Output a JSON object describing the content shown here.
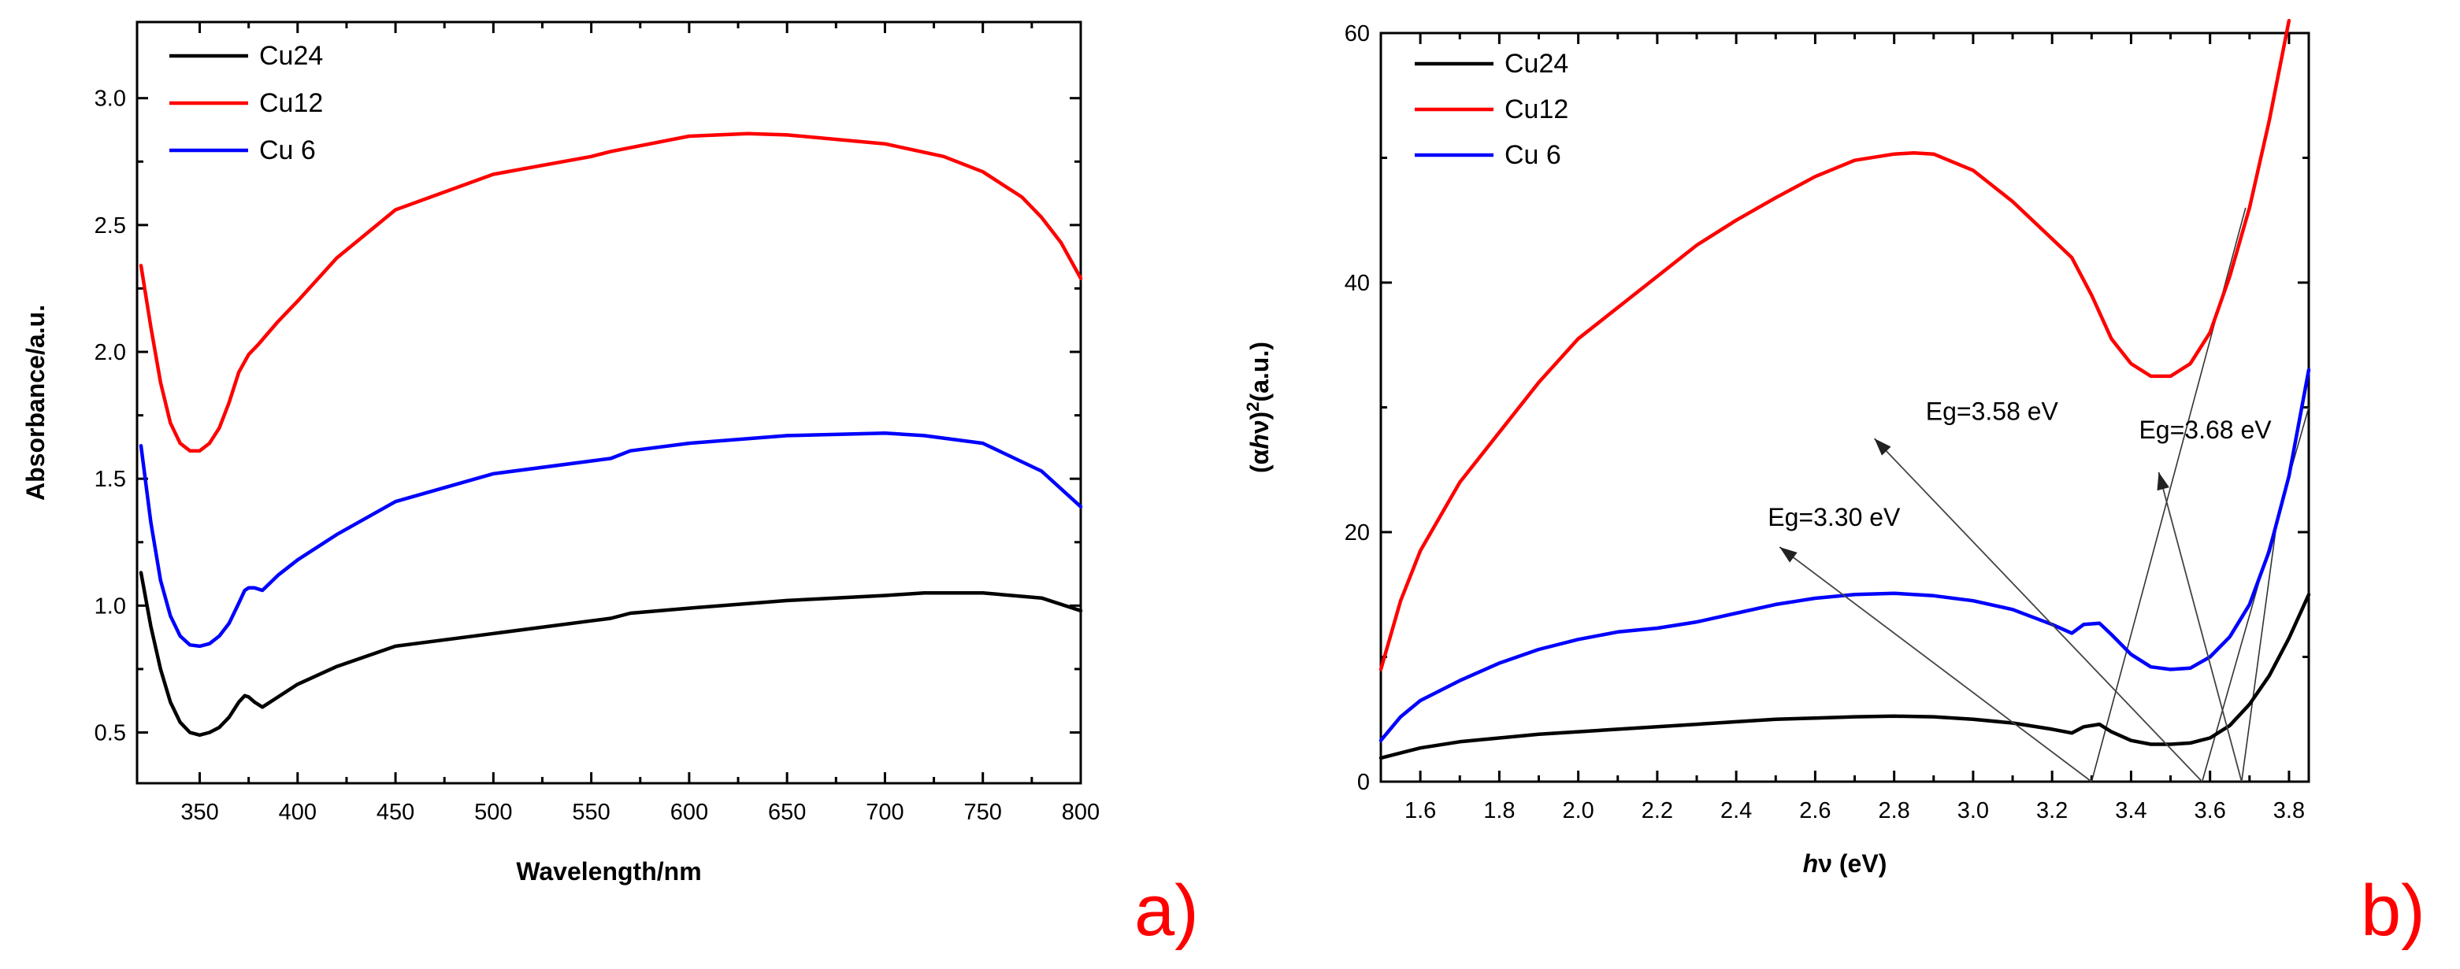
{
  "colors": {
    "Cu24": "#000000",
    "Cu12": "#ff0000",
    "Cu 6": "#0000ff"
  },
  "chart_data": [
    {
      "type": "line",
      "panel_label": "a)",
      "xlabel": "Wavelength/nm",
      "ylabel": "Absorbance/a.u.",
      "xlim": [
        318,
        800
      ],
      "ylim": [
        0.3,
        3.3
      ],
      "xticks": [
        350,
        400,
        450,
        500,
        550,
        600,
        650,
        700,
        750,
        800
      ],
      "yticks": [
        0.5,
        1.0,
        1.5,
        2.0,
        2.5,
        3.0
      ],
      "ytick_labels": [
        "0.5",
        "1.0",
        "1.5",
        "2.0",
        "2.5",
        "3.0"
      ],
      "legend": [
        "Cu24",
        "Cu12",
        "Cu 6"
      ],
      "legend_position": "top-left",
      "series": [
        {
          "name": "Cu24",
          "x": [
            320,
            325,
            330,
            335,
            340,
            345,
            350,
            355,
            360,
            365,
            370,
            373,
            375,
            378,
            382,
            390,
            400,
            420,
            450,
            500,
            550,
            560,
            570,
            600,
            650,
            700,
            720,
            750,
            780,
            800
          ],
          "values": [
            1.13,
            0.92,
            0.75,
            0.62,
            0.54,
            0.5,
            0.49,
            0.5,
            0.52,
            0.56,
            0.62,
            0.645,
            0.64,
            0.62,
            0.6,
            0.64,
            0.69,
            0.76,
            0.84,
            0.89,
            0.94,
            0.95,
            0.97,
            0.99,
            1.02,
            1.04,
            1.05,
            1.05,
            1.03,
            0.98
          ]
        },
        {
          "name": "Cu12",
          "x": [
            320,
            325,
            330,
            335,
            340,
            345,
            350,
            355,
            360,
            365,
            370,
            375,
            380,
            390,
            400,
            420,
            450,
            500,
            550,
            560,
            600,
            630,
            650,
            700,
            730,
            750,
            770,
            780,
            790,
            800
          ],
          "values": [
            2.34,
            2.1,
            1.88,
            1.72,
            1.64,
            1.61,
            1.61,
            1.64,
            1.7,
            1.8,
            1.92,
            1.99,
            2.03,
            2.12,
            2.2,
            2.37,
            2.56,
            2.7,
            2.77,
            2.79,
            2.85,
            2.86,
            2.855,
            2.82,
            2.77,
            2.71,
            2.61,
            2.53,
            2.43,
            2.29
          ]
        },
        {
          "name": "Cu 6",
          "x": [
            320,
            325,
            330,
            335,
            340,
            345,
            350,
            355,
            360,
            365,
            370,
            373,
            375,
            378,
            382,
            390,
            400,
            420,
            450,
            500,
            550,
            560,
            570,
            600,
            650,
            700,
            720,
            750,
            780,
            800
          ],
          "values": [
            1.63,
            1.33,
            1.1,
            0.96,
            0.88,
            0.845,
            0.84,
            0.85,
            0.88,
            0.93,
            1.01,
            1.06,
            1.07,
            1.07,
            1.06,
            1.12,
            1.18,
            1.28,
            1.41,
            1.52,
            1.57,
            1.58,
            1.61,
            1.64,
            1.67,
            1.68,
            1.67,
            1.64,
            1.53,
            1.39
          ]
        }
      ]
    },
    {
      "type": "line",
      "panel_label": "b)",
      "xlabel": "hν (eV)",
      "xlabel_parts": {
        "italic": "h",
        "rest": "ν (eV)"
      },
      "ylabel": "(αhν)²(a.u.)",
      "ylabel_parts": {
        "open": "(α",
        "italic": "h",
        "mid": "ν)",
        "sup": "2",
        "close": "(a.u.)"
      },
      "xlim": [
        1.5,
        3.85
      ],
      "ylim": [
        0,
        60
      ],
      "xticks": [
        1.6,
        1.8,
        2.0,
        2.2,
        2.4,
        2.6,
        2.8,
        3.0,
        3.2,
        3.4,
        3.6,
        3.8
      ],
      "xtick_labels": [
        "1.6",
        "1.8",
        "2.0",
        "2.2",
        "2.4",
        "2.6",
        "2.8",
        "3.0",
        "3.2",
        "3.4",
        "3.6",
        "3.8"
      ],
      "yticks": [
        0,
        20,
        40,
        60
      ],
      "ytick_labels": [
        "0",
        "20",
        "40",
        "60"
      ],
      "legend": [
        "Cu24",
        "Cu12",
        "Cu 6"
      ],
      "legend_position": "top-left",
      "series": [
        {
          "name": "Cu24",
          "x": [
            1.5,
            1.6,
            1.7,
            1.8,
            1.9,
            2.0,
            2.1,
            2.2,
            2.3,
            2.4,
            2.5,
            2.6,
            2.7,
            2.8,
            2.9,
            3.0,
            3.1,
            3.2,
            3.25,
            3.28,
            3.32,
            3.35,
            3.4,
            3.45,
            3.5,
            3.55,
            3.6,
            3.65,
            3.7,
            3.75,
            3.8,
            3.85
          ],
          "values": [
            1.9,
            2.7,
            3.2,
            3.5,
            3.8,
            4.0,
            4.2,
            4.4,
            4.6,
            4.8,
            5.0,
            5.1,
            5.2,
            5.25,
            5.2,
            5.0,
            4.7,
            4.2,
            3.9,
            4.4,
            4.6,
            4.0,
            3.3,
            3.0,
            3.0,
            3.1,
            3.5,
            4.5,
            6.2,
            8.5,
            11.5,
            15.0
          ]
        },
        {
          "name": "Cu12",
          "x": [
            1.5,
            1.55,
            1.6,
            1.7,
            1.8,
            1.9,
            2.0,
            2.1,
            2.2,
            2.3,
            2.4,
            2.5,
            2.6,
            2.7,
            2.8,
            2.85,
            2.9,
            3.0,
            3.1,
            3.2,
            3.25,
            3.3,
            3.35,
            3.4,
            3.45,
            3.5,
            3.55,
            3.6,
            3.65,
            3.7,
            3.75,
            3.8
          ],
          "values": [
            9.0,
            14.5,
            18.5,
            24.0,
            28.0,
            32.0,
            35.5,
            38.0,
            40.5,
            43.0,
            45.0,
            46.8,
            48.5,
            49.8,
            50.3,
            50.4,
            50.3,
            49.0,
            46.5,
            43.5,
            42.0,
            39.0,
            35.5,
            33.5,
            32.5,
            32.5,
            33.5,
            36.0,
            40.5,
            46.0,
            53.0,
            61.0
          ]
        },
        {
          "name": "Cu 6",
          "x": [
            1.5,
            1.55,
            1.6,
            1.7,
            1.8,
            1.9,
            2.0,
            2.1,
            2.2,
            2.3,
            2.4,
            2.5,
            2.6,
            2.7,
            2.8,
            2.9,
            3.0,
            3.1,
            3.2,
            3.25,
            3.28,
            3.32,
            3.35,
            3.4,
            3.45,
            3.5,
            3.55,
            3.6,
            3.65,
            3.7,
            3.75,
            3.8,
            3.85
          ],
          "values": [
            3.3,
            5.2,
            6.5,
            8.1,
            9.5,
            10.6,
            11.4,
            12.0,
            12.3,
            12.8,
            13.5,
            14.2,
            14.7,
            15.0,
            15.1,
            14.9,
            14.5,
            13.8,
            12.6,
            11.9,
            12.6,
            12.7,
            11.8,
            10.2,
            9.2,
            9.0,
            9.1,
            10.0,
            11.6,
            14.2,
            18.5,
            24.5,
            33.0
          ]
        }
      ],
      "tangents": [
        {
          "for": "Cu24",
          "from": [
            3.3,
            0
          ],
          "to": [
            3.69,
            46
          ]
        },
        {
          "for": "Cu 6",
          "from": [
            3.58,
            0
          ],
          "to": [
            3.85,
            30
          ]
        },
        {
          "for": "Cu12",
          "from": [
            3.68,
            0
          ],
          "to": [
            3.77,
            21
          ]
        }
      ],
      "annotations": [
        {
          "text": "Eg=3.30 eV",
          "label_at": [
            2.48,
            20.5
          ],
          "arrow_tip": [
            2.51,
            18.8
          ],
          "arrow_from": [
            3.3,
            0
          ]
        },
        {
          "text": "Eg=3.58 eV",
          "label_at": [
            2.88,
            29.0
          ],
          "arrow_tip": [
            2.75,
            27.5
          ],
          "arrow_from": [
            3.58,
            0
          ]
        },
        {
          "text": "Eg=3.68 eV",
          "label_at": [
            3.42,
            27.5
          ],
          "arrow_tip": [
            3.47,
            24.8
          ],
          "arrow_from": [
            3.68,
            0
          ]
        }
      ]
    }
  ]
}
